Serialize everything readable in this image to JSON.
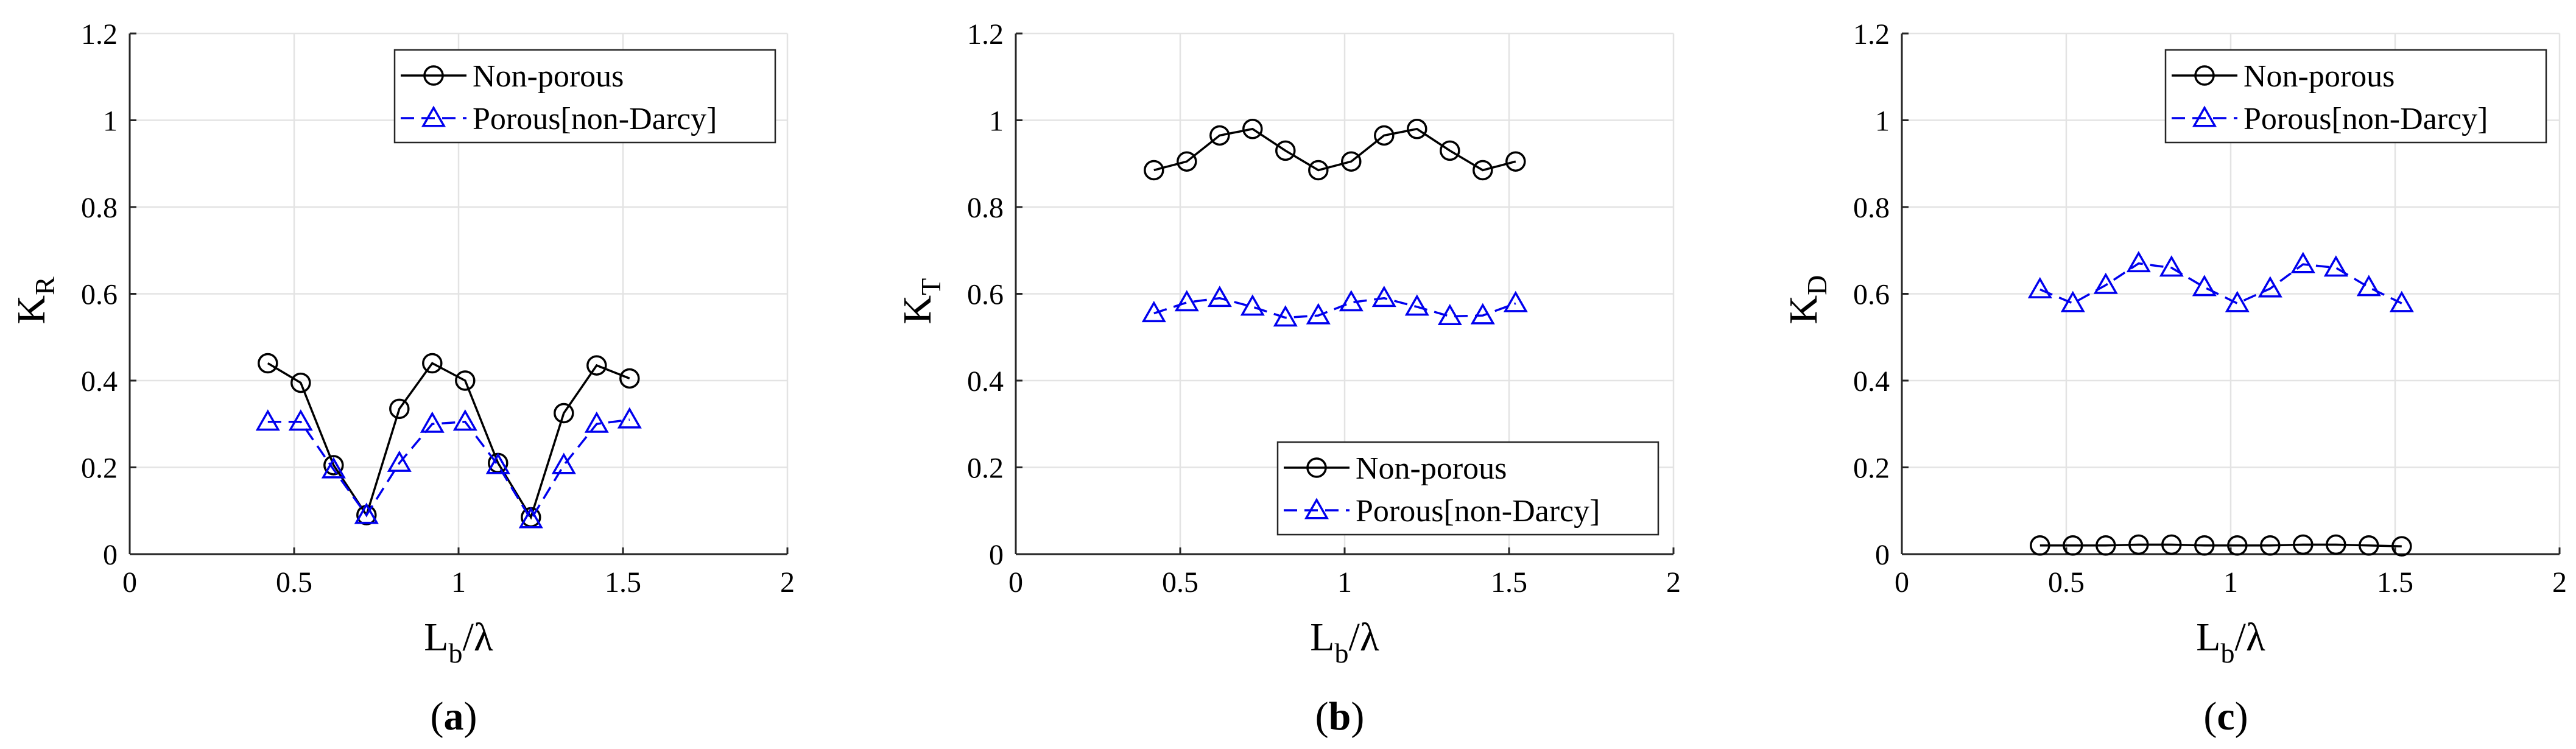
{
  "figure": {
    "captions": [
      {
        "open": "(",
        "letter": "a",
        "close": ")"
      },
      {
        "open": "(",
        "letter": "b",
        "close": ")"
      },
      {
        "open": "(",
        "letter": "c",
        "close": ")"
      }
    ]
  },
  "chart_data": [
    {
      "type": "line",
      "panel": "a",
      "ylabel": {
        "main": "K",
        "sub": "R"
      },
      "xlabel": {
        "main": "L",
        "sub": "b",
        "rest": "/λ"
      },
      "xlim": [
        0,
        2
      ],
      "ylim": [
        0,
        1.2
      ],
      "xticks": [
        "0",
        "0.5",
        "1",
        "1.5",
        "2"
      ],
      "yticks": [
        "0",
        "0.2",
        "0.4",
        "0.6",
        "0.8",
        "1",
        "1.2"
      ],
      "grid": true,
      "legend_position": "top-right",
      "x": [
        0.42,
        0.52,
        0.62,
        0.72,
        0.82,
        0.92,
        1.02,
        1.12,
        1.22,
        1.32,
        1.42,
        1.52
      ],
      "series": [
        {
          "name": "Non-porous",
          "color": "#000000",
          "marker": "circle",
          "dash": "solid",
          "values": [
            0.44,
            0.395,
            0.205,
            0.09,
            0.335,
            0.44,
            0.4,
            0.21,
            0.085,
            0.325,
            0.435,
            0.405
          ]
        },
        {
          "name": "Porous[non-Darcy]",
          "color": "#0000ee",
          "marker": "triangle",
          "dash": "dashed",
          "values": [
            0.305,
            0.305,
            0.195,
            0.09,
            0.21,
            0.3,
            0.305,
            0.205,
            0.08,
            0.205,
            0.3,
            0.31
          ]
        }
      ]
    },
    {
      "type": "line",
      "panel": "b",
      "ylabel": {
        "main": "K",
        "sub": "T"
      },
      "xlabel": {
        "main": "L",
        "sub": "b",
        "rest": "/λ"
      },
      "xlim": [
        0,
        2
      ],
      "ylim": [
        0,
        1.2
      ],
      "xticks": [
        "0",
        "0.5",
        "1",
        "1.5",
        "2"
      ],
      "yticks": [
        "0",
        "0.2",
        "0.4",
        "0.6",
        "0.8",
        "1",
        "1.2"
      ],
      "grid": true,
      "legend_position": "bottom-right",
      "x": [
        0.42,
        0.52,
        0.62,
        0.72,
        0.82,
        0.92,
        1.02,
        1.12,
        1.22,
        1.32,
        1.42,
        1.52
      ],
      "series": [
        {
          "name": "Non-porous",
          "color": "#000000",
          "marker": "circle",
          "dash": "solid",
          "values": [
            0.885,
            0.905,
            0.965,
            0.98,
            0.93,
            0.885,
            0.905,
            0.965,
            0.98,
            0.93,
            0.885,
            0.905
          ]
        },
        {
          "name": "Porous[non-Darcy]",
          "color": "#0000ee",
          "marker": "triangle",
          "dash": "dashed",
          "values": [
            0.555,
            0.58,
            0.59,
            0.57,
            0.545,
            0.55,
            0.58,
            0.59,
            0.57,
            0.548,
            0.55,
            0.578
          ]
        }
      ]
    },
    {
      "type": "line",
      "panel": "c",
      "ylabel": {
        "main": "K",
        "sub": "D"
      },
      "xlabel": {
        "main": "L",
        "sub": "b",
        "rest": "/λ"
      },
      "xlim": [
        0,
        2
      ],
      "ylim": [
        0,
        1.2
      ],
      "xticks": [
        "0",
        "0.5",
        "1",
        "1.5",
        "2"
      ],
      "yticks": [
        "0",
        "0.2",
        "0.4",
        "0.6",
        "0.8",
        "1",
        "1.2"
      ],
      "grid": true,
      "legend_position": "top-right",
      "x": [
        0.42,
        0.52,
        0.62,
        0.72,
        0.82,
        0.92,
        1.02,
        1.12,
        1.22,
        1.32,
        1.42,
        1.52
      ],
      "series": [
        {
          "name": "Non-porous",
          "color": "#000000",
          "marker": "circle",
          "dash": "solid",
          "values": [
            0.02,
            0.02,
            0.02,
            0.022,
            0.022,
            0.02,
            0.02,
            0.02,
            0.022,
            0.022,
            0.02,
            0.018
          ]
        },
        {
          "name": "Porous[non-Darcy]",
          "color": "#0000ee",
          "marker": "triangle",
          "dash": "dashed",
          "values": [
            0.61,
            0.578,
            0.62,
            0.67,
            0.66,
            0.615,
            0.578,
            0.612,
            0.668,
            0.66,
            0.615,
            0.578
          ]
        }
      ]
    }
  ]
}
